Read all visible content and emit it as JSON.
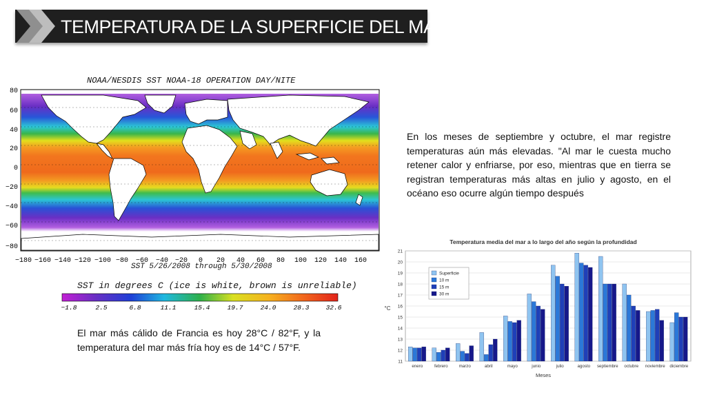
{
  "slide": {
    "title": "TEMPERATURA DE LA SUPERFICIE DEL MAR"
  },
  "map": {
    "header": "NOAA/NESDIS SST NOAA-18 OPERATION DAY/NITE",
    "date_range": "SST 5/26/2008 through 5/30/2008",
    "units_caption": "SST in degrees C (ice is white, brown is unreliable)",
    "lat_labels": [
      "80",
      "60",
      "40",
      "20",
      "0",
      "−20",
      "−40",
      "−60",
      "−80"
    ],
    "lon_labels": [
      "−180",
      "−160",
      "−140",
      "−120",
      "−100",
      "−80",
      "−60",
      "−40",
      "−20",
      "0",
      "20",
      "40",
      "60",
      "80",
      "100",
      "120",
      "140",
      "160"
    ],
    "scale_labels": [
      "−1.8",
      "2.5",
      "6.8",
      "11.1",
      "15.4",
      "19.7",
      "24.0",
      "28.3",
      "32.6"
    ],
    "colors": {
      "purple": "#7a1fa6",
      "blue": "#1e4fd6",
      "cyan": "#22c9d9",
      "green": "#2fb34a",
      "yellow": "#e8e020",
      "orange": "#f58a1f",
      "red": "#e22a1d"
    }
  },
  "text": {
    "right_paragraph": "En los meses de septiembre y octubre, el mar registre temperaturas aún más elevadas. \"Al mar le cuesta mucho retener calor y enfriarse, por eso, mientras que en tierra se registran temperaturas más altas en julio y agosto, en el océano eso ocurre algún tiempo después",
    "left_paragraph": "El mar más cálido de Francia es hoy 28°C / 82°F, y la temperatura del mar más fría hoy es de 14°C / 57°F."
  },
  "chart_data": {
    "type": "bar",
    "title": "Temperatura media del mar a lo largo del año según la profundidad",
    "xlabel": "Meses",
    "ylabel": "°C",
    "ylim": [
      11,
      21
    ],
    "yticks": [
      "11",
      "12",
      "13",
      "14",
      "15",
      "16",
      "17",
      "18",
      "19",
      "20",
      "21"
    ],
    "legend_position": "top-left",
    "grid": true,
    "categories": [
      "enero",
      "febrero",
      "marzo",
      "abril",
      "mayo",
      "junio",
      "julio",
      "agosto",
      "septiembre",
      "octubre",
      "noviembre",
      "diciembre"
    ],
    "series": [
      {
        "name": "Superficie",
        "color": "#8fc4f0",
        "values": [
          12.3,
          12.2,
          12.6,
          13.6,
          15.1,
          17.1,
          19.7,
          20.8,
          20.5,
          18.0,
          15.5,
          14.5
        ]
      },
      {
        "name": "10 m",
        "color": "#2b78d8",
        "values": [
          12.2,
          11.8,
          11.9,
          11.6,
          14.6,
          16.4,
          18.7,
          19.9,
          18.0,
          17.0,
          15.6,
          15.4
        ]
      },
      {
        "name": "15 m",
        "color": "#1f3fb8",
        "values": [
          12.2,
          12.0,
          11.7,
          12.5,
          14.5,
          16.0,
          18.0,
          19.7,
          18.0,
          16.0,
          15.7,
          15.0
        ]
      },
      {
        "name": "30 m",
        "color": "#16188a",
        "values": [
          12.3,
          12.2,
          12.4,
          13.0,
          14.7,
          15.7,
          17.8,
          19.5,
          18.0,
          15.6,
          14.7,
          15.0
        ]
      }
    ]
  }
}
